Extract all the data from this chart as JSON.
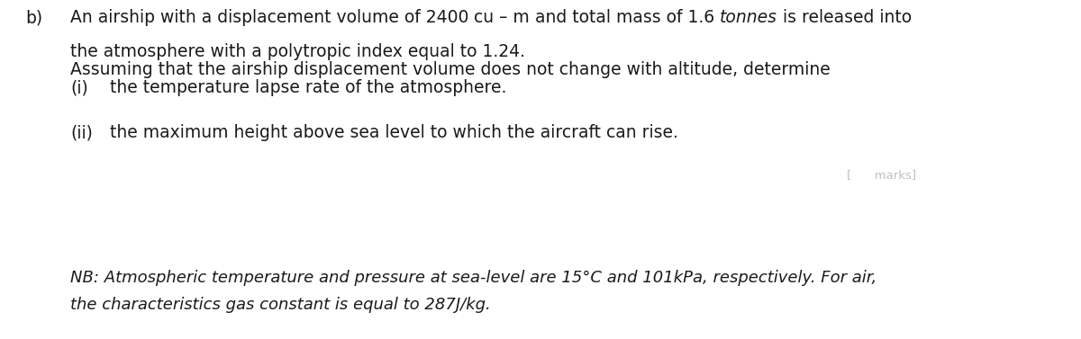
{
  "background_color": "#ffffff",
  "label_b": "b)",
  "seg1": "An airship with a displacement volume of 2400 ",
  "seg2": "cu – m",
  "seg3": " and total mass of 1.6 ",
  "seg4": "tonnes",
  "seg5": " is released into",
  "line2": "the atmosphere with a polytropic index equal to 1.24.",
  "line3": "Assuming that the airship displacement volume does not change with altitude, determine",
  "label_i": "(i)",
  "line4": "the temperature lapse rate of the atmosphere.",
  "label_ii": "(ii)",
  "line5": "the maximum height above sea level to which the aircraft can rise.",
  "marks_text": "[      marks]",
  "nb_line1": "NB: Atmospheric temperature and pressure at sea-level are 15°C and 101kPa, respectively. For air,",
  "nb_line2": "the characteristics gas constant is equal to 287J/kg.",
  "font_size_main": 13.5,
  "font_size_nb": 13.0,
  "font_size_marks": 9.5,
  "text_color": "#1a1a1a",
  "marks_color": "#c0c0c0",
  "fig_width": 12.0,
  "fig_height": 3.77
}
